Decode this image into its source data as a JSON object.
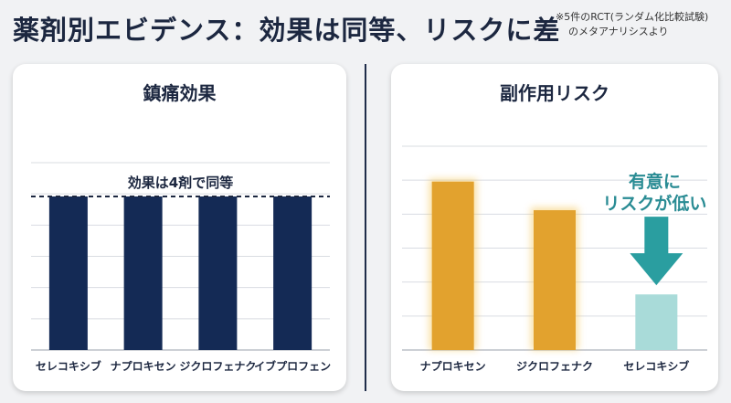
{
  "header": {
    "title": "薬剤別エビデンス：効果は同等、リスクに差",
    "note_line1": "※5件のRCT(ランダム化比較試験)",
    "note_line2": "のメタアナリシスより"
  },
  "colors": {
    "efficacy_bar": "#142a55",
    "risk_bar": "#e2a22e",
    "risk_bar_highlight": "#a9dbd9",
    "arrow": "#2a9ea0",
    "annotation": "#2a8c94",
    "grid": "#d9dce2"
  },
  "chart_data": [
    {
      "type": "bar",
      "title": "鎮痛効果",
      "categories": [
        "セレコキシブ",
        "ナプロキセン",
        "ジクロフェナク",
        "イブプロフェン"
      ],
      "values": [
        1,
        1,
        1,
        1
      ],
      "ylim": [
        0,
        1.22
      ],
      "grid": true,
      "annotation": "効果は4剤で同等"
    },
    {
      "type": "bar",
      "title": "副作用リスク",
      "categories": [
        "ナプロキセン",
        "ジクロフェナク",
        "セレコキシブ"
      ],
      "values": [
        1.0,
        0.83,
        0.33
      ],
      "ylim": [
        0,
        1.21
      ],
      "grid": true,
      "highlight_index": 2,
      "annotation_lines": [
        "有意に",
        "リスクが低い"
      ]
    }
  ]
}
